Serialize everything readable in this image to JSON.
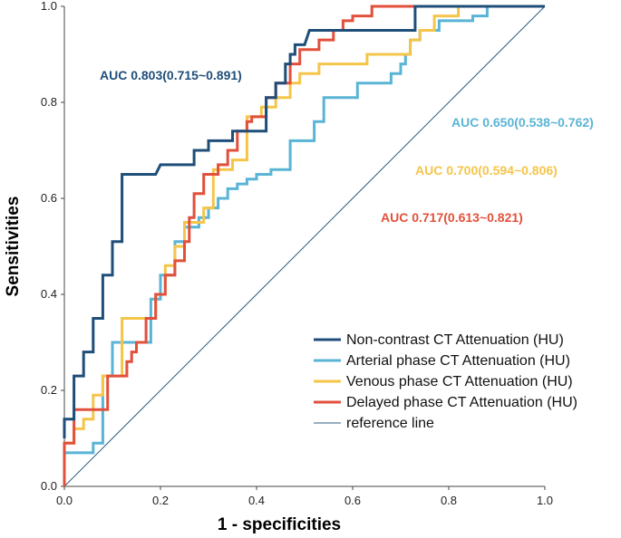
{
  "chart_data": {
    "type": "line",
    "title": "",
    "xlabel": "1 - specificities",
    "ylabel": "Sensitivities",
    "xlim": [
      0,
      1
    ],
    "ylim": [
      0,
      1
    ],
    "xticks": [
      "0.0",
      "0.2",
      "0.4",
      "0.6",
      "0.8",
      "1.0"
    ],
    "yticks": [
      "0.0",
      "0.2",
      "0.4",
      "0.6",
      "0.8",
      "1.0"
    ],
    "grid": false,
    "legend_position": "bottom-right",
    "series": [
      {
        "name": "Non-contrast CT Attenuation (HU)",
        "color": "#1f4e79",
        "auc_label": "AUC 0.803(0.715~0.891)",
        "x": [
          0,
          0,
          0.02,
          0.02,
          0.04,
          0.04,
          0.06,
          0.06,
          0.08,
          0.08,
          0.1,
          0.1,
          0.12,
          0.12,
          0.19,
          0.2,
          0.27,
          0.27,
          0.3,
          0.3,
          0.35,
          0.35,
          0.42,
          0.42,
          0.44,
          0.44,
          0.46,
          0.46,
          0.47,
          0.47,
          0.48,
          0.48,
          0.5,
          0.51,
          0.51,
          0.73,
          0.73,
          1.0
        ],
        "y": [
          0.1,
          0.14,
          0.14,
          0.23,
          0.23,
          0.28,
          0.28,
          0.35,
          0.35,
          0.44,
          0.44,
          0.51,
          0.51,
          0.65,
          0.65,
          0.67,
          0.67,
          0.7,
          0.7,
          0.72,
          0.72,
          0.74,
          0.74,
          0.81,
          0.81,
          0.84,
          0.84,
          0.88,
          0.88,
          0.9,
          0.9,
          0.92,
          0.92,
          0.95,
          0.95,
          0.95,
          1.0,
          1.0
        ]
      },
      {
        "name": "Arterial phase CT Attenuation (HU)",
        "color": "#5ab4d6",
        "auc_label": "AUC 0.650(0.538~0.762)",
        "x": [
          0,
          0,
          0.06,
          0.06,
          0.08,
          0.08,
          0.1,
          0.1,
          0.18,
          0.18,
          0.2,
          0.2,
          0.23,
          0.23,
          0.25,
          0.25,
          0.28,
          0.28,
          0.3,
          0.3,
          0.32,
          0.32,
          0.34,
          0.34,
          0.36,
          0.36,
          0.38,
          0.38,
          0.4,
          0.4,
          0.43,
          0.43,
          0.47,
          0.47,
          0.52,
          0.52,
          0.54,
          0.54,
          0.61,
          0.61,
          0.68,
          0.68,
          0.7,
          0.7,
          0.71,
          0.71,
          0.72,
          0.72,
          0.74,
          0.74,
          0.78,
          0.78,
          0.85,
          0.85,
          0.88,
          0.88,
          1.0
        ],
        "y": [
          0.07,
          0.07,
          0.07,
          0.09,
          0.09,
          0.23,
          0.23,
          0.3,
          0.3,
          0.39,
          0.39,
          0.44,
          0.44,
          0.51,
          0.51,
          0.54,
          0.54,
          0.56,
          0.56,
          0.58,
          0.58,
          0.6,
          0.6,
          0.62,
          0.62,
          0.63,
          0.63,
          0.64,
          0.64,
          0.65,
          0.65,
          0.66,
          0.66,
          0.72,
          0.72,
          0.76,
          0.76,
          0.81,
          0.81,
          0.84,
          0.84,
          0.86,
          0.86,
          0.88,
          0.88,
          0.9,
          0.9,
          0.93,
          0.93,
          0.95,
          0.95,
          0.97,
          0.97,
          0.98,
          0.98,
          1.0,
          1.0
        ]
      },
      {
        "name": "Venous phase CT Attenuation (HU)",
        "color": "#f5c54a",
        "auc_label": "AUC 0.700(0.594~0.806)",
        "x": [
          0,
          0,
          0.02,
          0.02,
          0.04,
          0.04,
          0.06,
          0.06,
          0.08,
          0.08,
          0.12,
          0.12,
          0.19,
          0.19,
          0.21,
          0.21,
          0.23,
          0.23,
          0.25,
          0.25,
          0.29,
          0.29,
          0.31,
          0.31,
          0.35,
          0.35,
          0.38,
          0.38,
          0.41,
          0.41,
          0.44,
          0.44,
          0.47,
          0.47,
          0.49,
          0.49,
          0.53,
          0.53,
          0.63,
          0.63,
          0.72,
          0.72,
          0.74,
          0.74,
          0.77,
          0.77,
          0.82,
          0.82,
          1.0
        ],
        "y": [
          0.09,
          0.09,
          0.09,
          0.12,
          0.12,
          0.14,
          0.14,
          0.19,
          0.19,
          0.23,
          0.23,
          0.35,
          0.35,
          0.4,
          0.4,
          0.46,
          0.46,
          0.5,
          0.5,
          0.55,
          0.55,
          0.58,
          0.58,
          0.66,
          0.66,
          0.68,
          0.68,
          0.77,
          0.77,
          0.79,
          0.79,
          0.81,
          0.81,
          0.84,
          0.84,
          0.86,
          0.86,
          0.88,
          0.88,
          0.9,
          0.9,
          0.93,
          0.93,
          0.95,
          0.95,
          0.98,
          0.98,
          1.0,
          1.0
        ]
      },
      {
        "name": "Delayed phase CT Attenuation (HU)",
        "color": "#e2503c",
        "auc_label": "AUC 0.717(0.613~0.821)",
        "x": [
          0,
          0,
          0.02,
          0.02,
          0.09,
          0.09,
          0.13,
          0.13,
          0.14,
          0.14,
          0.15,
          0.15,
          0.17,
          0.17,
          0.19,
          0.19,
          0.21,
          0.21,
          0.23,
          0.23,
          0.25,
          0.25,
          0.26,
          0.26,
          0.27,
          0.27,
          0.29,
          0.29,
          0.32,
          0.32,
          0.34,
          0.34,
          0.36,
          0.36,
          0.38,
          0.38,
          0.39,
          0.39,
          0.42,
          0.42,
          0.44,
          0.44,
          0.47,
          0.47,
          0.49,
          0.49,
          0.53,
          0.53,
          0.56,
          0.56,
          0.58,
          0.58,
          0.6,
          0.6,
          0.64,
          0.64,
          0.67,
          0.67,
          0.8,
          0.8,
          1.0
        ],
        "y": [
          0.0,
          0.09,
          0.09,
          0.16,
          0.16,
          0.23,
          0.23,
          0.26,
          0.26,
          0.28,
          0.28,
          0.3,
          0.3,
          0.35,
          0.35,
          0.4,
          0.4,
          0.44,
          0.44,
          0.47,
          0.47,
          0.51,
          0.51,
          0.56,
          0.56,
          0.61,
          0.61,
          0.65,
          0.65,
          0.67,
          0.67,
          0.7,
          0.7,
          0.74,
          0.74,
          0.76,
          0.76,
          0.77,
          0.77,
          0.81,
          0.81,
          0.84,
          0.84,
          0.88,
          0.88,
          0.91,
          0.91,
          0.93,
          0.93,
          0.95,
          0.95,
          0.97,
          0.97,
          0.98,
          0.98,
          1.0,
          1.0,
          1.0,
          1.0,
          1.0,
          1.0
        ]
      }
    ],
    "reference_line": {
      "name": "reference line",
      "color": "#2f5f7f",
      "x": [
        0,
        1
      ],
      "y": [
        0,
        1
      ]
    }
  }
}
